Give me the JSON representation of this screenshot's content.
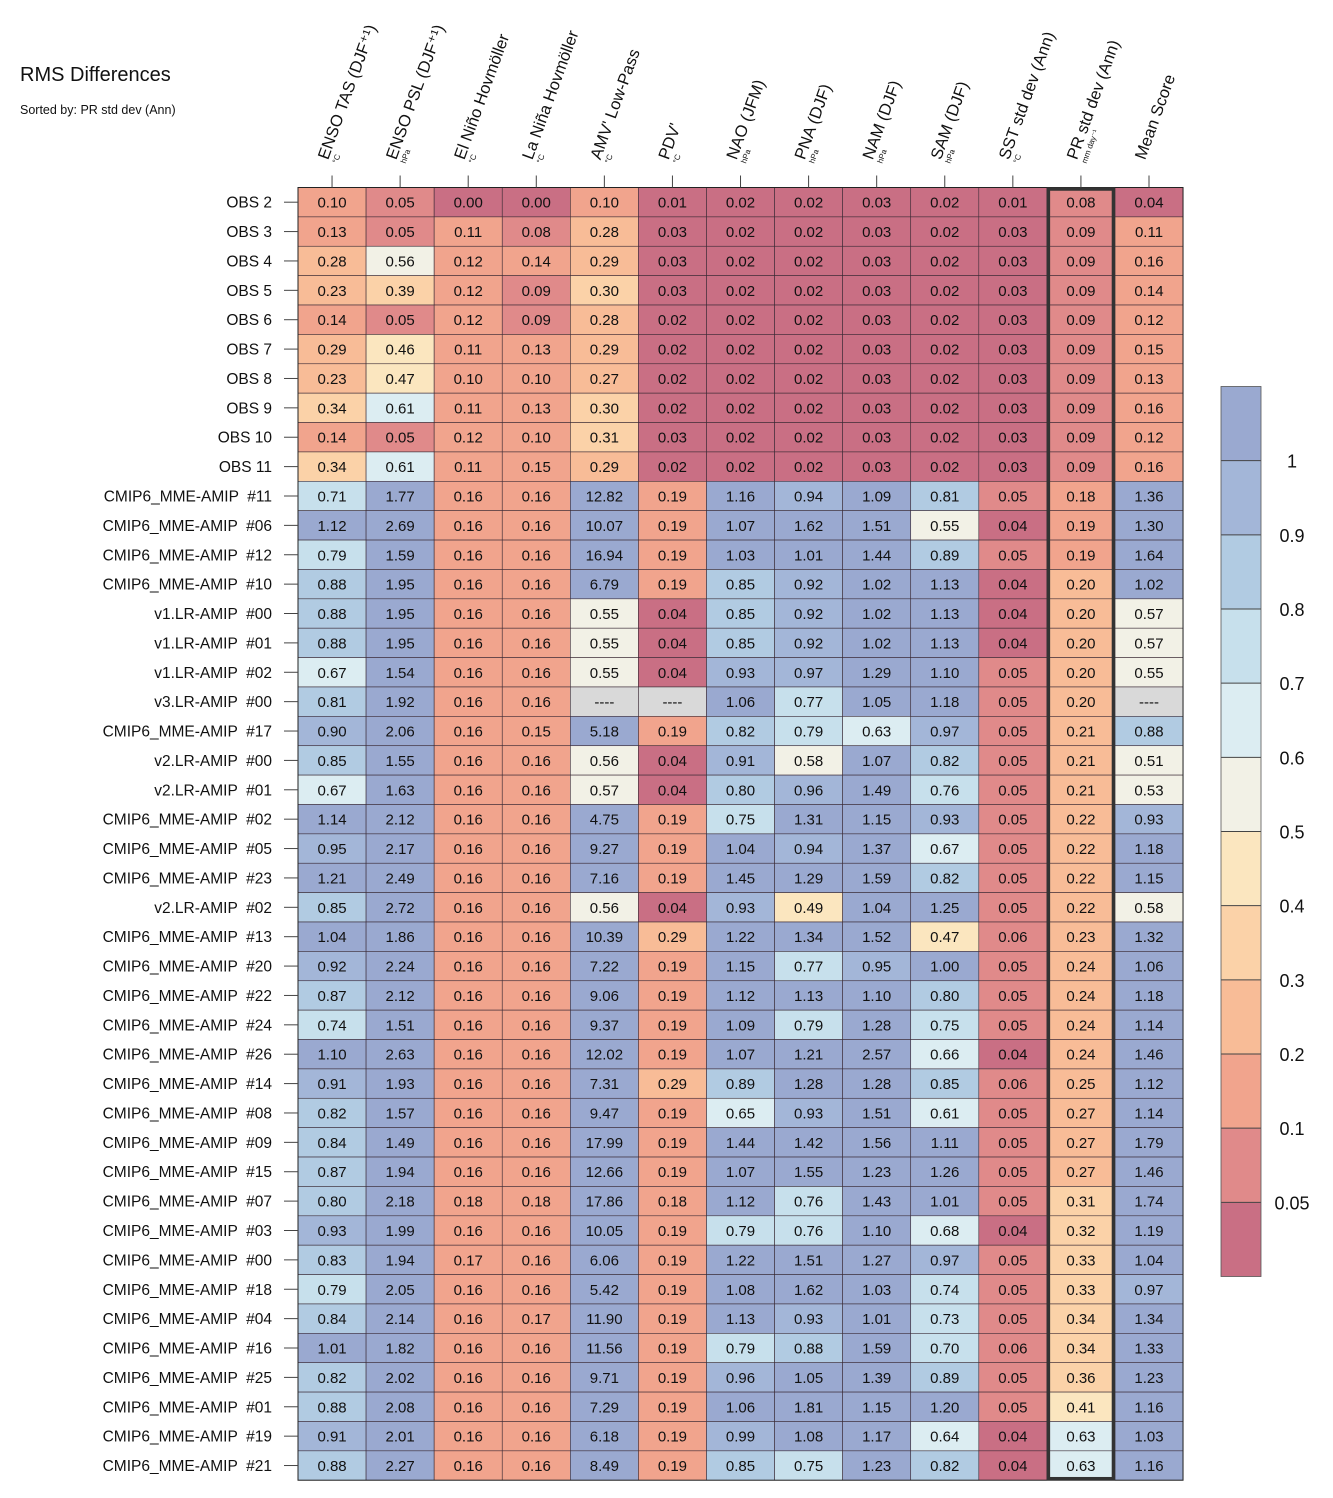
{
  "title": "RMS Differences",
  "subtitle": "Sorted by: PR std dev (Ann)",
  "highlight_column": 11,
  "colors": {
    "scale": [
      "#c96f84",
      "#e08a8a",
      "#f1a48d",
      "#f8bc97",
      "#fbd2a8",
      "#fbe6bf",
      "#f2f1e6",
      "#dcedf2",
      "#c7e0ec",
      "#b1cbe2",
      "#a3b6d8",
      "#9aa9d0"
    ],
    "missing": "#d9d9d9",
    "highlight_border": "#333333"
  },
  "chart_data": {
    "type": "heatmap",
    "columns": [
      {
        "name": "ENSO TAS (DJF⁺¹)",
        "unit": "°C"
      },
      {
        "name": "ENSO PSL (DJF⁺¹)",
        "unit": "hPa"
      },
      {
        "name": "El Niño Hovmöller",
        "unit": "°C"
      },
      {
        "name": "La Niña Hovmöller",
        "unit": "°C"
      },
      {
        "name": "AMV' Low-Pass",
        "unit": "°C"
      },
      {
        "name": "PDV'",
        "unit": "°C"
      },
      {
        "name": "NAO (JFM)",
        "unit": "hPa"
      },
      {
        "name": "PNA (DJF)",
        "unit": "hPa"
      },
      {
        "name": "NAM (DJF)",
        "unit": "hPa"
      },
      {
        "name": "SAM (DJF)",
        "unit": "hPa"
      },
      {
        "name": "SST std dev (Ann)",
        "unit": "°C"
      },
      {
        "name": "PR std dev (Ann)",
        "unit": "mm day⁻¹"
      },
      {
        "name": "Mean Score",
        "unit": ""
      }
    ],
    "rows": [
      {
        "label": "OBS 2",
        "values": [
          "0.10",
          "0.05",
          "0.00",
          "0.00",
          "0.10",
          "0.01",
          "0.02",
          "0.02",
          "0.03",
          "0.02",
          "0.01",
          "0.08",
          "0.04"
        ]
      },
      {
        "label": "OBS 3",
        "values": [
          "0.13",
          "0.05",
          "0.11",
          "0.08",
          "0.28",
          "0.03",
          "0.02",
          "0.02",
          "0.03",
          "0.02",
          "0.03",
          "0.09",
          "0.11"
        ]
      },
      {
        "label": "OBS 4",
        "values": [
          "0.28",
          "0.56",
          "0.12",
          "0.14",
          "0.29",
          "0.03",
          "0.02",
          "0.02",
          "0.03",
          "0.02",
          "0.03",
          "0.09",
          "0.16"
        ]
      },
      {
        "label": "OBS 5",
        "values": [
          "0.23",
          "0.39",
          "0.12",
          "0.09",
          "0.30",
          "0.03",
          "0.02",
          "0.02",
          "0.03",
          "0.02",
          "0.03",
          "0.09",
          "0.14"
        ]
      },
      {
        "label": "OBS 6",
        "values": [
          "0.14",
          "0.05",
          "0.12",
          "0.09",
          "0.28",
          "0.02",
          "0.02",
          "0.02",
          "0.03",
          "0.02",
          "0.03",
          "0.09",
          "0.12"
        ]
      },
      {
        "label": "OBS 7",
        "values": [
          "0.29",
          "0.46",
          "0.11",
          "0.13",
          "0.29",
          "0.02",
          "0.02",
          "0.02",
          "0.03",
          "0.02",
          "0.03",
          "0.09",
          "0.15"
        ]
      },
      {
        "label": "OBS 8",
        "values": [
          "0.23",
          "0.47",
          "0.10",
          "0.10",
          "0.27",
          "0.02",
          "0.02",
          "0.02",
          "0.03",
          "0.02",
          "0.03",
          "0.09",
          "0.13"
        ]
      },
      {
        "label": "OBS 9",
        "values": [
          "0.34",
          "0.61",
          "0.11",
          "0.13",
          "0.30",
          "0.02",
          "0.02",
          "0.02",
          "0.03",
          "0.02",
          "0.03",
          "0.09",
          "0.16"
        ]
      },
      {
        "label": "OBS 10",
        "values": [
          "0.14",
          "0.05",
          "0.12",
          "0.10",
          "0.31",
          "0.03",
          "0.02",
          "0.02",
          "0.03",
          "0.02",
          "0.03",
          "0.09",
          "0.12"
        ]
      },
      {
        "label": "OBS 11",
        "values": [
          "0.34",
          "0.61",
          "0.11",
          "0.15",
          "0.29",
          "0.02",
          "0.02",
          "0.02",
          "0.03",
          "0.02",
          "0.03",
          "0.09",
          "0.16"
        ]
      },
      {
        "label": "CMIP6_MME-AMIP  #11",
        "values": [
          "0.71",
          "1.77",
          "0.16",
          "0.16",
          "12.82",
          "0.19",
          "1.16",
          "0.94",
          "1.09",
          "0.81",
          "0.05",
          "0.18",
          "1.36"
        ]
      },
      {
        "label": "CMIP6_MME-AMIP  #06",
        "values": [
          "1.12",
          "2.69",
          "0.16",
          "0.16",
          "10.07",
          "0.19",
          "1.07",
          "1.62",
          "1.51",
          "0.55",
          "0.04",
          "0.19",
          "1.30"
        ]
      },
      {
        "label": "CMIP6_MME-AMIP  #12",
        "values": [
          "0.79",
          "1.59",
          "0.16",
          "0.16",
          "16.94",
          "0.19",
          "1.03",
          "1.01",
          "1.44",
          "0.89",
          "0.05",
          "0.19",
          "1.64"
        ]
      },
      {
        "label": "CMIP6_MME-AMIP  #10",
        "values": [
          "0.88",
          "1.95",
          "0.16",
          "0.16",
          "6.79",
          "0.19",
          "0.85",
          "0.92",
          "1.02",
          "1.13",
          "0.04",
          "0.20",
          "1.02"
        ]
      },
      {
        "label": "v1.LR-AMIP  #00",
        "values": [
          "0.88",
          "1.95",
          "0.16",
          "0.16",
          "0.55",
          "0.04",
          "0.85",
          "0.92",
          "1.02",
          "1.13",
          "0.04",
          "0.20",
          "0.57"
        ]
      },
      {
        "label": "v1.LR-AMIP  #01",
        "values": [
          "0.88",
          "1.95",
          "0.16",
          "0.16",
          "0.55",
          "0.04",
          "0.85",
          "0.92",
          "1.02",
          "1.13",
          "0.04",
          "0.20",
          "0.57"
        ]
      },
      {
        "label": "v1.LR-AMIP  #02",
        "values": [
          "0.67",
          "1.54",
          "0.16",
          "0.16",
          "0.55",
          "0.04",
          "0.93",
          "0.97",
          "1.29",
          "1.10",
          "0.05",
          "0.20",
          "0.55"
        ]
      },
      {
        "label": "v3.LR-AMIP  #00",
        "values": [
          "0.81",
          "1.92",
          "0.16",
          "0.16",
          "----",
          "----",
          "1.06",
          "0.77",
          "1.05",
          "1.18",
          "0.05",
          "0.20",
          "----"
        ]
      },
      {
        "label": "CMIP6_MME-AMIP  #17",
        "values": [
          "0.90",
          "2.06",
          "0.16",
          "0.15",
          "5.18",
          "0.19",
          "0.82",
          "0.79",
          "0.63",
          "0.97",
          "0.05",
          "0.21",
          "0.88"
        ]
      },
      {
        "label": "v2.LR-AMIP  #00",
        "values": [
          "0.85",
          "1.55",
          "0.16",
          "0.16",
          "0.56",
          "0.04",
          "0.91",
          "0.58",
          "1.07",
          "0.82",
          "0.05",
          "0.21",
          "0.51"
        ]
      },
      {
        "label": "v2.LR-AMIP  #01",
        "values": [
          "0.67",
          "1.63",
          "0.16",
          "0.16",
          "0.57",
          "0.04",
          "0.80",
          "0.96",
          "1.49",
          "0.76",
          "0.05",
          "0.21",
          "0.53"
        ]
      },
      {
        "label": "CMIP6_MME-AMIP  #02",
        "values": [
          "1.14",
          "2.12",
          "0.16",
          "0.16",
          "4.75",
          "0.19",
          "0.75",
          "1.31",
          "1.15",
          "0.93",
          "0.05",
          "0.22",
          "0.93"
        ]
      },
      {
        "label": "CMIP6_MME-AMIP  #05",
        "values": [
          "0.95",
          "2.17",
          "0.16",
          "0.16",
          "9.27",
          "0.19",
          "1.04",
          "0.94",
          "1.37",
          "0.67",
          "0.05",
          "0.22",
          "1.18"
        ]
      },
      {
        "label": "CMIP6_MME-AMIP  #23",
        "values": [
          "1.21",
          "2.49",
          "0.16",
          "0.16",
          "7.16",
          "0.19",
          "1.45",
          "1.29",
          "1.59",
          "0.82",
          "0.05",
          "0.22",
          "1.15"
        ]
      },
      {
        "label": "v2.LR-AMIP  #02",
        "values": [
          "0.85",
          "2.72",
          "0.16",
          "0.16",
          "0.56",
          "0.04",
          "0.93",
          "0.49",
          "1.04",
          "1.25",
          "0.05",
          "0.22",
          "0.58"
        ]
      },
      {
        "label": "CMIP6_MME-AMIP  #13",
        "values": [
          "1.04",
          "1.86",
          "0.16",
          "0.16",
          "10.39",
          "0.29",
          "1.22",
          "1.34",
          "1.52",
          "0.47",
          "0.06",
          "0.23",
          "1.32"
        ]
      },
      {
        "label": "CMIP6_MME-AMIP  #20",
        "values": [
          "0.92",
          "2.24",
          "0.16",
          "0.16",
          "7.22",
          "0.19",
          "1.15",
          "0.77",
          "0.95",
          "1.00",
          "0.05",
          "0.24",
          "1.06"
        ]
      },
      {
        "label": "CMIP6_MME-AMIP  #22",
        "values": [
          "0.87",
          "2.12",
          "0.16",
          "0.16",
          "9.06",
          "0.19",
          "1.12",
          "1.13",
          "1.10",
          "0.80",
          "0.05",
          "0.24",
          "1.18"
        ]
      },
      {
        "label": "CMIP6_MME-AMIP  #24",
        "values": [
          "0.74",
          "1.51",
          "0.16",
          "0.16",
          "9.37",
          "0.19",
          "1.09",
          "0.79",
          "1.28",
          "0.75",
          "0.05",
          "0.24",
          "1.14"
        ]
      },
      {
        "label": "CMIP6_MME-AMIP  #26",
        "values": [
          "1.10",
          "2.63",
          "0.16",
          "0.16",
          "12.02",
          "0.19",
          "1.07",
          "1.21",
          "2.57",
          "0.66",
          "0.04",
          "0.24",
          "1.46"
        ]
      },
      {
        "label": "CMIP6_MME-AMIP  #14",
        "values": [
          "0.91",
          "1.93",
          "0.16",
          "0.16",
          "7.31",
          "0.29",
          "0.89",
          "1.28",
          "1.28",
          "0.85",
          "0.06",
          "0.25",
          "1.12"
        ]
      },
      {
        "label": "CMIP6_MME-AMIP  #08",
        "values": [
          "0.82",
          "1.57",
          "0.16",
          "0.16",
          "9.47",
          "0.19",
          "0.65",
          "0.93",
          "1.51",
          "0.61",
          "0.05",
          "0.27",
          "1.14"
        ]
      },
      {
        "label": "CMIP6_MME-AMIP  #09",
        "values": [
          "0.84",
          "1.49",
          "0.16",
          "0.16",
          "17.99",
          "0.19",
          "1.44",
          "1.42",
          "1.56",
          "1.11",
          "0.05",
          "0.27",
          "1.79"
        ]
      },
      {
        "label": "CMIP6_MME-AMIP  #15",
        "values": [
          "0.87",
          "1.94",
          "0.16",
          "0.16",
          "12.66",
          "0.19",
          "1.07",
          "1.55",
          "1.23",
          "1.26",
          "0.05",
          "0.27",
          "1.46"
        ]
      },
      {
        "label": "CMIP6_MME-AMIP  #07",
        "values": [
          "0.80",
          "2.18",
          "0.18",
          "0.18",
          "17.86",
          "0.18",
          "1.12",
          "0.76",
          "1.43",
          "1.01",
          "0.05",
          "0.31",
          "1.74"
        ]
      },
      {
        "label": "CMIP6_MME-AMIP  #03",
        "values": [
          "0.93",
          "1.99",
          "0.16",
          "0.16",
          "10.05",
          "0.19",
          "0.79",
          "0.76",
          "1.10",
          "0.68",
          "0.04",
          "0.32",
          "1.19"
        ]
      },
      {
        "label": "CMIP6_MME-AMIP  #00",
        "values": [
          "0.83",
          "1.94",
          "0.17",
          "0.16",
          "6.06",
          "0.19",
          "1.22",
          "1.51",
          "1.27",
          "0.97",
          "0.05",
          "0.33",
          "1.04"
        ]
      },
      {
        "label": "CMIP6_MME-AMIP  #18",
        "values": [
          "0.79",
          "2.05",
          "0.16",
          "0.16",
          "5.42",
          "0.19",
          "1.08",
          "1.62",
          "1.03",
          "0.74",
          "0.05",
          "0.33",
          "0.97"
        ]
      },
      {
        "label": "CMIP6_MME-AMIP  #04",
        "values": [
          "0.84",
          "2.14",
          "0.16",
          "0.17",
          "11.90",
          "0.19",
          "1.13",
          "0.93",
          "1.01",
          "0.73",
          "0.05",
          "0.34",
          "1.34"
        ]
      },
      {
        "label": "CMIP6_MME-AMIP  #16",
        "values": [
          "1.01",
          "1.82",
          "0.16",
          "0.16",
          "11.56",
          "0.19",
          "0.79",
          "0.88",
          "1.59",
          "0.70",
          "0.06",
          "0.34",
          "1.33"
        ]
      },
      {
        "label": "CMIP6_MME-AMIP  #25",
        "values": [
          "0.82",
          "2.02",
          "0.16",
          "0.16",
          "9.71",
          "0.19",
          "0.96",
          "1.05",
          "1.39",
          "0.89",
          "0.05",
          "0.36",
          "1.23"
        ]
      },
      {
        "label": "CMIP6_MME-AMIP  #01",
        "values": [
          "0.88",
          "2.08",
          "0.16",
          "0.16",
          "7.29",
          "0.19",
          "1.06",
          "1.81",
          "1.15",
          "1.20",
          "0.05",
          "0.41",
          "1.16"
        ]
      },
      {
        "label": "CMIP6_MME-AMIP  #19",
        "values": [
          "0.91",
          "2.01",
          "0.16",
          "0.16",
          "6.18",
          "0.19",
          "0.99",
          "1.08",
          "1.17",
          "0.64",
          "0.04",
          "0.63",
          "1.03"
        ]
      },
      {
        "label": "CMIP6_MME-AMIP  #21",
        "values": [
          "0.88",
          "2.27",
          "0.16",
          "0.16",
          "8.49",
          "0.19",
          "0.85",
          "0.75",
          "1.23",
          "0.82",
          "0.04",
          "0.63",
          "1.16"
        ]
      }
    ],
    "colorbar": {
      "ticks": [
        "1",
        "0.9",
        "0.8",
        "0.7",
        "0.6",
        "0.5",
        "0.4",
        "0.3",
        "0.2",
        "0.1",
        "0.05"
      ]
    }
  }
}
